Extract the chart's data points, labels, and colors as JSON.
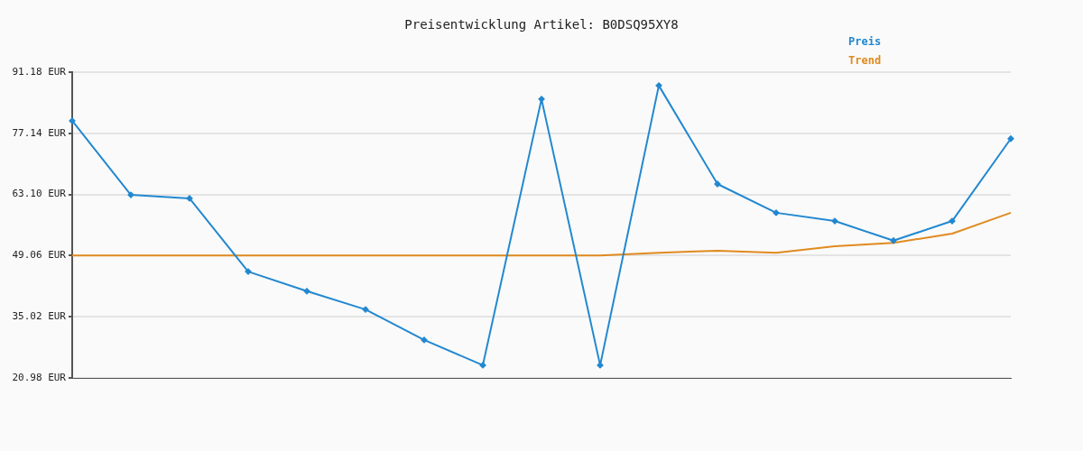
{
  "chart_data": {
    "type": "line",
    "title": "Preisentwicklung Artikel: B0DSQ95XY8",
    "categories": [
      null,
      null,
      null,
      null,
      null,
      null,
      null,
      null,
      null,
      null,
      null,
      null,
      null,
      null,
      null,
      null,
      null
    ],
    "series": [
      {
        "name": "Preis",
        "color": "#2288d0",
        "marker": "diamond",
        "values": [
          80.0,
          63.0,
          62.2,
          45.4,
          40.9,
          36.7,
          29.7,
          23.9,
          85.0,
          23.9,
          88.1,
          65.5,
          58.9,
          57.0,
          52.5,
          57.0,
          75.9
        ]
      },
      {
        "name": "Trend",
        "color": "#e08a20",
        "marker": "none",
        "values": [
          49.1,
          49.1,
          49.1,
          49.1,
          49.1,
          49.1,
          49.1,
          49.1,
          49.1,
          49.1,
          49.7,
          50.2,
          49.7,
          51.2,
          52.0,
          54.1,
          58.9
        ]
      }
    ],
    "ylim": [
      20.98,
      91.18
    ],
    "yticks": [
      {
        "value": 20.98,
        "label": "20.98 EUR"
      },
      {
        "value": 35.02,
        "label": "35.02 EUR"
      },
      {
        "value": 49.06,
        "label": "49.06 EUR"
      },
      {
        "value": 63.1,
        "label": "63.10 EUR"
      },
      {
        "value": 77.14,
        "label": "77.14 EUR"
      },
      {
        "value": 91.18,
        "label": "91.18 EUR"
      }
    ],
    "grid": "y",
    "legend": "top right",
    "line_style": "solid"
  }
}
